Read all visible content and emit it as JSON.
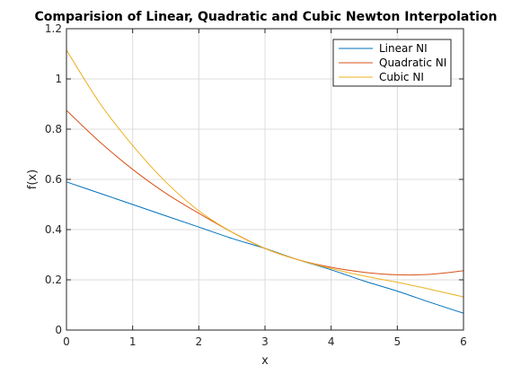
{
  "chart_data": {
    "type": "line",
    "title": "Comparision of Linear, Quadratic and Cubic Newton Interpolation",
    "xlabel": "x",
    "ylabel": "f(x)",
    "xlim": [
      0,
      6
    ],
    "ylim": [
      0,
      1.2
    ],
    "grid": true,
    "legend_position": "top-right",
    "xticks": [
      0,
      1,
      2,
      3,
      4,
      5,
      6
    ],
    "xtick_labels": [
      "0",
      "1",
      "2",
      "3",
      "4",
      "5",
      "6"
    ],
    "yticks": [
      0,
      0.2,
      0.4,
      0.6,
      0.8,
      1,
      1.2
    ],
    "ytick_labels": [
      "0",
      "0.2",
      "0.4",
      "0.6",
      "0.8",
      "1",
      "1.2"
    ],
    "x": [
      0,
      0.5,
      1,
      1.5,
      2,
      2.5,
      3,
      3.5,
      4,
      4.5,
      5,
      5.5,
      6
    ],
    "series": [
      {
        "name": "Linear NI",
        "color": "#0072bd",
        "values": [
          0.59,
          0.545,
          0.5,
          0.455,
          0.41,
          0.365,
          0.325,
          0.28,
          0.24,
          0.195,
          0.155,
          0.11,
          0.067
        ]
      },
      {
        "name": "Quadratic NI",
        "color": "#d95319",
        "values": [
          0.875,
          0.75,
          0.64,
          0.545,
          0.465,
          0.39,
          0.325,
          0.28,
          0.25,
          0.23,
          0.22,
          0.222,
          0.236
        ]
      },
      {
        "name": "Cubic NI",
        "color": "#edb120",
        "values": [
          1.115,
          0.905,
          0.735,
          0.59,
          0.475,
          0.39,
          0.325,
          0.28,
          0.245,
          0.215,
          0.19,
          0.162,
          0.132
        ]
      }
    ]
  }
}
